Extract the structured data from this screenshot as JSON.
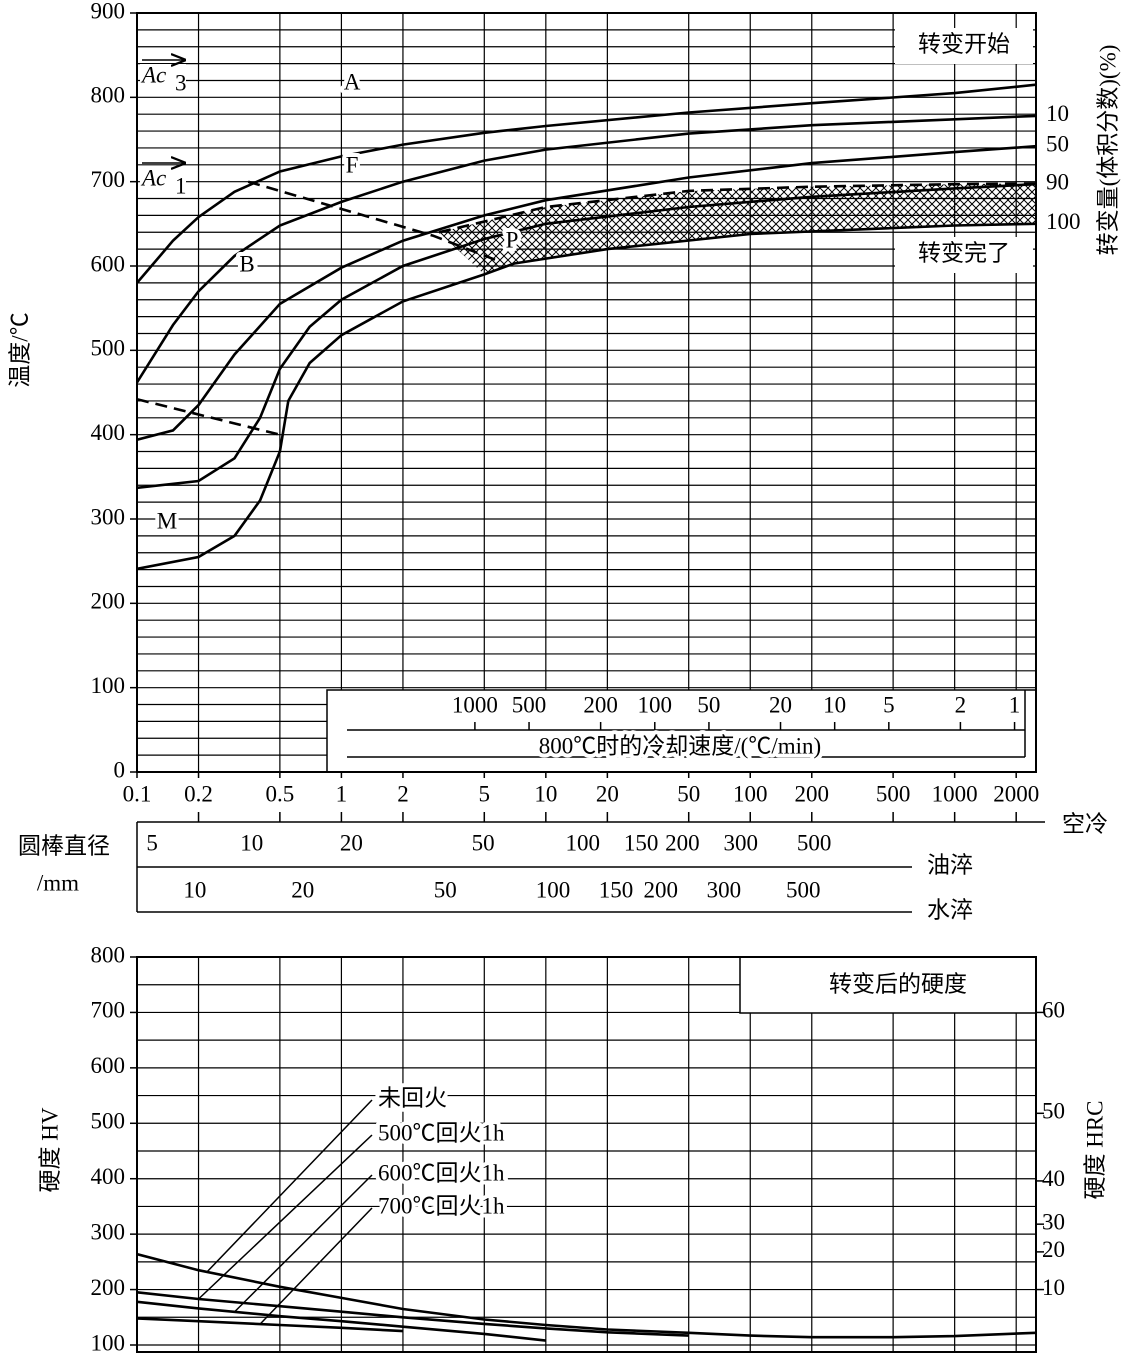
{
  "chart_data": [
    {
      "type": "line",
      "y_label": "温度/℃",
      "y2_label": "转变量(体积分数)(%)",
      "x_name": "空冷",
      "xscale": "log",
      "xlim": [
        0.1,
        2500
      ],
      "xticks": [
        0.1,
        0.2,
        0.5,
        1,
        2,
        5,
        10,
        20,
        50,
        100,
        200,
        500,
        1000,
        2000
      ],
      "ylim": [
        0,
        900
      ],
      "yticks": [
        0,
        100,
        200,
        300,
        400,
        500,
        600,
        700,
        800,
        900
      ],
      "grid": true,
      "ygrid_step": 20,
      "series": [
        {
          "color": "#000000",
          "x": [
            0.1,
            0.15,
            0.2,
            0.3,
            0.5,
            1,
            2,
            5,
            10,
            50,
            200,
            1000,
            2500
          ],
          "values": [
            580,
            630,
            658,
            688,
            712,
            730,
            744,
            758,
            766,
            782,
            793,
            805,
            815
          ]
        },
        {
          "name": "10",
          "color": "#000000",
          "x": [
            0.1,
            0.15,
            0.2,
            0.3,
            0.5,
            1,
            2,
            5,
            10,
            50,
            200,
            1000,
            2500
          ],
          "values": [
            462,
            530,
            570,
            612,
            648,
            676,
            700,
            725,
            738,
            757,
            767,
            774,
            778
          ]
        },
        {
          "name": "50",
          "color": "#000000",
          "x": [
            0.1,
            0.15,
            0.2,
            0.3,
            0.5,
            1,
            2,
            5,
            10,
            50,
            200,
            1000,
            2500
          ],
          "values": [
            394,
            405,
            435,
            495,
            555,
            598,
            630,
            660,
            678,
            705,
            722,
            735,
            742
          ]
        },
        {
          "name": "90",
          "color": "#000000",
          "x": [
            0.1,
            0.2,
            0.3,
            0.4,
            0.5,
            0.7,
            1,
            2,
            5,
            10,
            50,
            200,
            1000,
            2500
          ],
          "values": [
            337,
            345,
            372,
            420,
            478,
            528,
            560,
            600,
            632,
            650,
            670,
            682,
            692,
            697
          ]
        },
        {
          "color": "#000000",
          "dashed": true,
          "hatch_below": true,
          "x": [
            3,
            10,
            50,
            200,
            1000,
            2500
          ],
          "values": [
            640,
            670,
            689,
            694,
            697,
            698
          ]
        },
        {
          "name": "100",
          "color": "#000000",
          "x": [
            0.1,
            0.2,
            0.3,
            0.4,
            0.5,
            0.55,
            0.7,
            1,
            2,
            5,
            7,
            20,
            100,
            1000,
            2500
          ],
          "values": [
            241,
            255,
            280,
            322,
            380,
            440,
            485,
            518,
            558,
            590,
            603,
            620,
            638,
            648,
            650
          ]
        },
        {
          "color": "#000000",
          "dashed": true,
          "x": [
            0.35,
            2.8,
            6
          ],
          "values": [
            700,
            636,
            605
          ]
        },
        {
          "color": "#000000",
          "dashed": true,
          "x": [
            0.1,
            0.5
          ],
          "values": [
            442,
            400
          ]
        }
      ],
      "annotations": [
        "A",
        "F",
        "B",
        "P",
        "M"
      ],
      "ac3": [
        "Ac",
        "3"
      ],
      "ac1": [
        "Ac",
        "1"
      ],
      "start_label": "转变开始",
      "end_label": "转变完了",
      "rate_axis": {
        "label": "800℃时的冷却速度/(℃/min)",
        "lim": [
          6640,
          0.76
        ],
        "ticks": [
          1000,
          500,
          200,
          100,
          50,
          20,
          10,
          5,
          2,
          1
        ]
      },
      "diameter_label": [
        "圆棒直径",
        "/mm"
      ],
      "oil_axis": {
        "name": "油淬",
        "lim": [
          4.5,
          2340
        ],
        "ticks": [
          5,
          10,
          20,
          50,
          100,
          150,
          200,
          300,
          500
        ]
      },
      "water_axis": {
        "name": "水淬",
        "lim": [
          6.89,
          2233
        ],
        "ticks": [
          10,
          20,
          50,
          100,
          150,
          200,
          300,
          500
        ]
      }
    },
    {
      "type": "line",
      "title": "转变后的硬度",
      "y_label": "硬度  HV",
      "y2_label": "硬度  HRC",
      "xscale": "log",
      "xlim": [
        0.1,
        2500
      ],
      "xgrid": [
        0.1,
        0.2,
        0.5,
        1,
        2,
        5,
        10,
        20,
        50,
        100,
        200,
        500,
        1000,
        2000
      ],
      "ylim": [
        100,
        800
      ],
      "yticks": [
        100,
        200,
        300,
        400,
        500,
        600,
        700,
        800
      ],
      "grid": true,
      "ygrid_step": 50,
      "y2ticks": [
        60,
        50,
        40,
        30,
        20,
        10
      ],
      "y2ticks_hv": [
        700,
        518,
        396,
        318,
        268,
        200
      ],
      "series": [
        {
          "name": "未回火",
          "color": "#000000",
          "x": [
            0.1,
            0.2,
            0.5,
            1,
            2,
            5,
            10,
            20,
            50,
            100,
            200,
            500,
            1000,
            2500
          ],
          "values": [
            264,
            235,
            205,
            185,
            165,
            146,
            136,
            128,
            122,
            117,
            114,
            114,
            116,
            122
          ]
        },
        {
          "name": "500℃回火1h",
          "color": "#000000",
          "x": [
            0.1,
            0.2,
            0.5,
            1,
            2,
            5,
            10,
            20,
            50
          ],
          "values": [
            195,
            183,
            170,
            160,
            150,
            138,
            130,
            123,
            117
          ]
        },
        {
          "name": "600℃回火1h",
          "color": "#000000",
          "x": [
            0.1,
            0.2,
            0.5,
            1,
            2,
            5,
            10
          ],
          "values": [
            178,
            166,
            152,
            143,
            133,
            120,
            108
          ]
        },
        {
          "name": "700℃回火1h",
          "color": "#000000",
          "x": [
            0.1,
            0.2,
            0.5,
            1,
            2
          ],
          "values": [
            148,
            143,
            136,
            131,
            125
          ]
        }
      ]
    }
  ]
}
